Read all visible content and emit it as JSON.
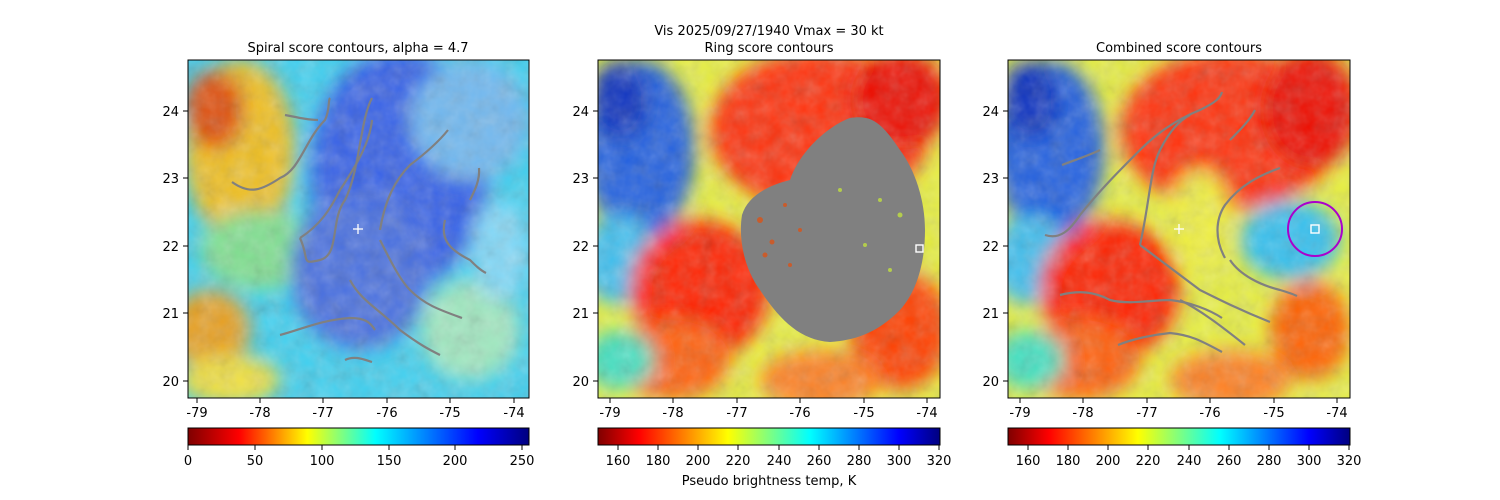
{
  "suptitle_line1": "Vis  2025/09/27/1940    Vmax = 30 kt",
  "colormap": [
    "#7f0000",
    "#ff0000",
    "#ffff00",
    "#00ffff",
    "#0000ff",
    "#00007f"
  ],
  "contour_color": "#808080",
  "chart_data": [
    {
      "type": "heatmap",
      "title": "Spiral score contours, alpha =  4.7",
      "xlabel": "",
      "ylabel": "",
      "xlim": [
        -79.2,
        -73.8
      ],
      "ylim": [
        19.75,
        24.75
      ],
      "xticks": [
        -79,
        -78,
        -77,
        -76,
        -75,
        -74
      ],
      "yticks": [
        20,
        21,
        22,
        23,
        24
      ],
      "colorbar": {
        "min": 0,
        "max": 255,
        "ticks": [
          0,
          50,
          100,
          150,
          200,
          250
        ],
        "label": ""
      },
      "center_marker": {
        "lon": -76.5,
        "lat": 22.25,
        "symbol": "plus",
        "color": "#ffffff"
      }
    },
    {
      "type": "heatmap",
      "title": "Ring score contours",
      "xlabel": "",
      "ylabel": "",
      "xlim": [
        -79.2,
        -73.8
      ],
      "ylim": [
        19.75,
        24.75
      ],
      "xticks": [
        -79,
        -78,
        -77,
        -76,
        -75,
        -74
      ],
      "yticks": [
        20,
        21,
        22,
        23,
        24
      ],
      "colorbar": {
        "min": 150,
        "max": 320,
        "ticks": [
          160,
          180,
          200,
          220,
          240,
          260,
          280,
          300,
          320
        ],
        "label": "Pseudo brightness temp, K"
      },
      "square_marker": {
        "lon": -74.1,
        "lat": 21.95,
        "symbol": "square",
        "color": "#ffffff"
      }
    },
    {
      "type": "heatmap",
      "title": "Combined score contours",
      "xlabel": "",
      "ylabel": "",
      "xlim": [
        -79.2,
        -73.8
      ],
      "ylim": [
        19.75,
        24.75
      ],
      "xticks": [
        -79,
        -78,
        -77,
        -76,
        -75,
        -74
      ],
      "yticks": [
        20,
        21,
        22,
        23,
        24
      ],
      "colorbar": {
        "min": 150,
        "max": 320,
        "ticks": [
          160,
          180,
          200,
          220,
          240,
          260,
          280,
          300,
          320
        ],
        "label": ""
      },
      "center_marker": {
        "lon": -76.5,
        "lat": 22.25,
        "symbol": "plus",
        "color": "#ffffff"
      },
      "square_marker": {
        "lon": -74.35,
        "lat": 22.25,
        "symbol": "square",
        "color": "#ffffff"
      },
      "circle_marker": {
        "lon": -74.35,
        "lat": 22.25,
        "radius_deg": 0.42,
        "color": "#aa00cc"
      }
    }
  ]
}
